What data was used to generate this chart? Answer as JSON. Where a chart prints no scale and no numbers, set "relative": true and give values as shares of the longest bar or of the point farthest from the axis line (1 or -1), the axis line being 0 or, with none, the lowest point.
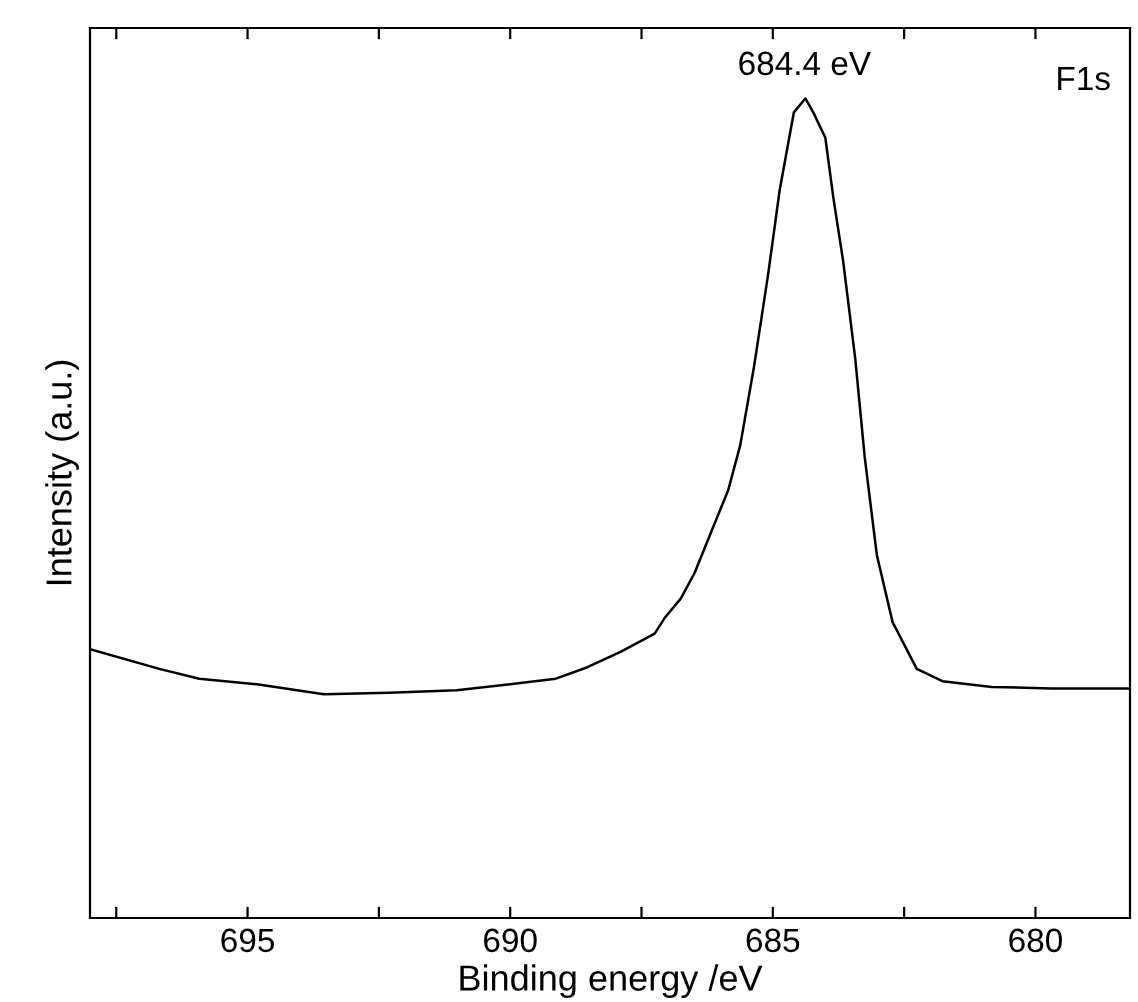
{
  "chart_data": {
    "type": "line",
    "relative": true,
    "xlabel": "Binding energy /eV",
    "ylabel": "Intensity (a.u.)",
    "x": [
      698.0,
      696.68,
      695.92,
      694.79,
      693.55,
      692.3,
      691.02,
      689.77,
      689.13,
      688.53,
      687.89,
      687.25,
      687.06,
      686.75,
      686.49,
      686.11,
      685.85,
      685.62,
      685.36,
      685.09,
      684.87,
      684.6,
      684.38,
      684.23,
      684.0,
      683.85,
      683.66,
      683.43,
      683.25,
      683.02,
      682.72,
      682.26,
      681.77,
      680.83,
      679.7,
      678.2
    ],
    "series": [
      {
        "color": "#000000",
        "values": [
          0.328,
          0.304,
          0.292,
          0.285,
          0.273,
          0.275,
          0.278,
          0.287,
          0.292,
          0.306,
          0.325,
          0.347,
          0.366,
          0.39,
          0.421,
          0.481,
          0.522,
          0.577,
          0.672,
          0.785,
          0.888,
          0.983,
          1.0,
          0.983,
          0.952,
          0.88,
          0.801,
          0.682,
          0.562,
          0.443,
          0.361,
          0.304,
          0.289,
          0.282,
          0.28,
          0.28
        ]
      }
    ],
    "xlim": [
      698,
      678.2
    ],
    "xticks": [
      {
        "value": 697.5,
        "label": null
      },
      695,
      {
        "value": 692.5,
        "label": null
      },
      690,
      {
        "value": 687.5,
        "label": null
      },
      685,
      {
        "value": 682.5,
        "label": null
      },
      680
    ],
    "annotations": [
      {
        "text": "684.4 eV",
        "x": 684.4,
        "y": 1.0
      },
      "F1s"
    ],
    "legend": false,
    "marker": "none",
    "line_style": "solid"
  }
}
